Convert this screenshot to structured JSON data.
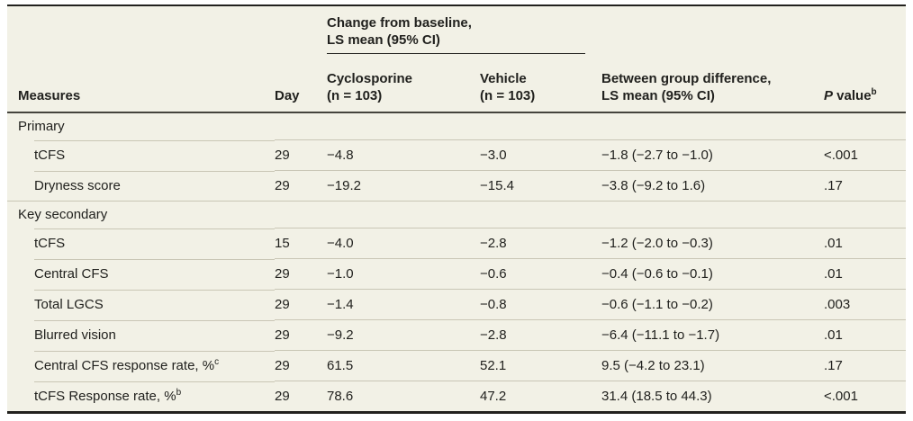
{
  "table": {
    "header": {
      "spanner": "Change from baseline,\nLS mean (95% CI)",
      "col_measures": "Measures",
      "col_day": "Day",
      "col_cyclosporine": "Cyclosporine\n(n = 103)",
      "col_vehicle": "Vehicle\n(n = 103)",
      "col_difference": "Between group difference,\nLS mean (95% CI)",
      "p_italic": "P",
      "p_rest": " value",
      "p_sup": "b"
    },
    "rows": [
      {
        "type": "section",
        "label": "Primary"
      },
      {
        "type": "data",
        "label": "tCFS",
        "day": "29",
        "cyclosporine": "−4.8",
        "vehicle": "−3.0",
        "difference": "−1.8 (−2.7 to −1.0)",
        "p": "<.001"
      },
      {
        "type": "data",
        "label": "Dryness score",
        "day": "29",
        "cyclosporine": "−19.2",
        "vehicle": "−15.4",
        "difference": "−3.8 (−9.2 to 1.6)",
        "p": ".17"
      },
      {
        "type": "section",
        "label": "Key secondary"
      },
      {
        "type": "data",
        "label": "tCFS",
        "day": "15",
        "cyclosporine": "−4.0",
        "vehicle": "−2.8",
        "difference": "−1.2 (−2.0 to −0.3)",
        "p": ".01"
      },
      {
        "type": "data",
        "label": "Central CFS",
        "day": "29",
        "cyclosporine": "−1.0",
        "vehicle": "−0.6",
        "difference": "−0.4 (−0.6 to −0.1)",
        "p": ".01"
      },
      {
        "type": "data",
        "label": "Total LGCS",
        "day": "29",
        "cyclosporine": "−1.4",
        "vehicle": "−0.8",
        "difference": "−0.6 (−1.1 to −0.2)",
        "p": ".003"
      },
      {
        "type": "data",
        "label": "Blurred vision",
        "day": "29",
        "cyclosporine": "−9.2",
        "vehicle": "−2.8",
        "difference": "−6.4 (−11.1 to −1.7)",
        "p": ".01"
      },
      {
        "type": "data",
        "label": "Central CFS response rate, %",
        "sup": "c",
        "day": "29",
        "cyclosporine": "61.5",
        "vehicle": "52.1",
        "difference": "9.5 (−4.2 to 23.1)",
        "p": ".17"
      },
      {
        "type": "data",
        "label": "tCFS Response rate, %",
        "sup": "b",
        "day": "29",
        "cyclosporine": "78.6",
        "vehicle": "47.2",
        "difference": "31.4 (18.5 to 44.3)",
        "p": "<.001"
      }
    ],
    "colors": {
      "table_background": "#f2f1e6",
      "heavy_rule": "#22211e",
      "light_rule": "#c9c6b5",
      "text": "#21211e"
    }
  }
}
